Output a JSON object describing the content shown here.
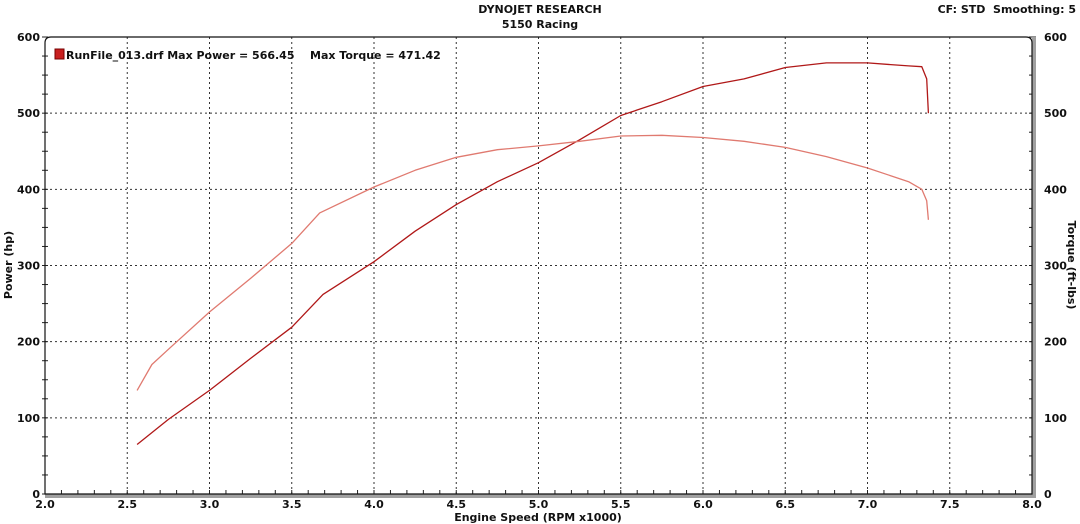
{
  "header": {
    "title": "DYNOJET RESEARCH",
    "subtitle": "5150 Racing",
    "settings": "CF: STD  Smoothing: 5"
  },
  "colors": {
    "power": "#b01818",
    "torque": "#e07a70",
    "grid": "#333333",
    "axis_shadow": "#a0a0a0"
  },
  "chart_data": {
    "type": "line",
    "xlabel": "Engine Speed (RPM x1000)",
    "ylabel": "Power (hp)",
    "y2label": "Torque (ft-lbs)",
    "xlim": [
      2.0,
      8.0
    ],
    "ylim": [
      0,
      600
    ],
    "y2lim": [
      0,
      600
    ],
    "xticks": [
      "2.0",
      "2.5",
      "3.0",
      "3.5",
      "4.0",
      "4.5",
      "5.0",
      "5.5",
      "6.0",
      "6.5",
      "7.0",
      "7.5",
      "8.0"
    ],
    "yticks": [
      "0",
      "100",
      "200",
      "300",
      "400",
      "500",
      "600"
    ],
    "y2ticks": [
      "0",
      "100",
      "200",
      "300",
      "400",
      "500",
      "600"
    ],
    "grid": true,
    "legend": {
      "placement": "top-left",
      "text": "RunFile_013.drf Max Power = 566.45",
      "extra": "Max Torque = 471.42"
    },
    "series": [
      {
        "name": "Power",
        "x": [
          2.56,
          2.75,
          3.0,
          3.25,
          3.5,
          3.69,
          4.0,
          4.25,
          4.5,
          4.75,
          5.0,
          5.25,
          5.5,
          5.75,
          6.0,
          6.25,
          6.5,
          6.75,
          7.0,
          7.25,
          7.33,
          7.36,
          7.37
        ],
        "y": [
          65,
          98,
          136,
          178,
          219,
          262,
          305,
          345,
          380,
          410,
          435,
          465,
          497,
          515,
          535,
          545,
          560,
          566,
          566,
          562,
          561,
          545,
          500
        ]
      },
      {
        "name": "Torque",
        "x": [
          2.56,
          2.65,
          2.75,
          3.0,
          3.25,
          3.5,
          3.67,
          4.0,
          4.25,
          4.5,
          4.75,
          5.0,
          5.25,
          5.5,
          5.75,
          6.0,
          6.25,
          6.5,
          6.75,
          7.0,
          7.25,
          7.33,
          7.36,
          7.37
        ],
        "y": [
          136,
          170,
          190,
          239,
          283,
          329,
          369,
          403,
          425,
          442,
          452,
          457,
          463,
          470,
          471,
          468,
          463,
          455,
          443,
          428,
          410,
          400,
          385,
          360
        ]
      }
    ]
  }
}
